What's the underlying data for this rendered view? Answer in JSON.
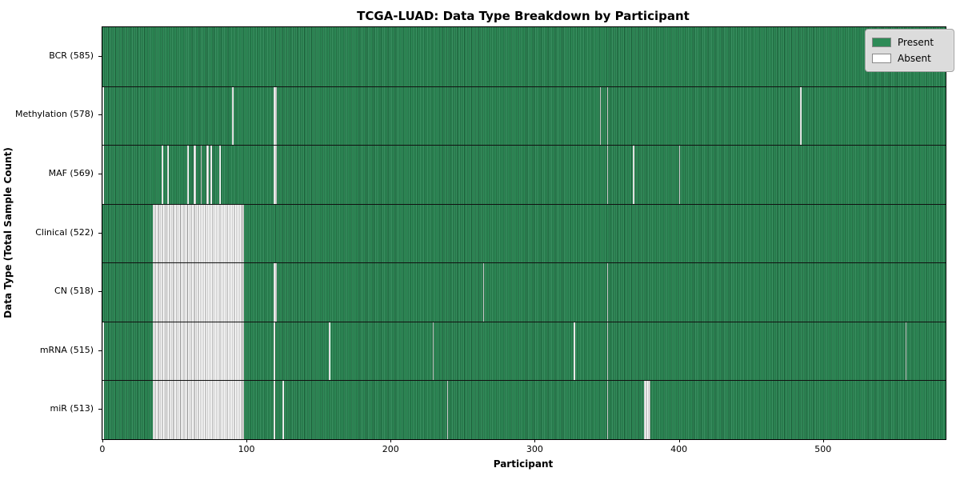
{
  "chart_data": {
    "type": "heatmap",
    "title": "TCGA-LUAD: Data Type Breakdown by Participant",
    "xlabel": "Participant",
    "ylabel": "Data Type (Total Sample Count)",
    "x_ticks": [
      0,
      100,
      200,
      300,
      400,
      500
    ],
    "n_participants": 585,
    "xlim": [
      -0.5,
      584.5
    ],
    "grid": "row-separators",
    "legend_position": "upper right",
    "colors": {
      "present": "#2e8b57",
      "present_edge": "#1c5c38",
      "present_light": "#459a6c",
      "absent": "#ffffff",
      "absent_edge": "#909090",
      "separator": "#111111"
    },
    "legend": [
      {
        "label": "Present",
        "color": "#2e8b57"
      },
      {
        "label": "Absent",
        "color": "#ffffff"
      }
    ],
    "rows": [
      {
        "label": "BCR (585)",
        "present_count": 585,
        "absent": []
      },
      {
        "label": "Methylation (578)",
        "present_count": 578,
        "absent": [
          0,
          90,
          [
            119,
            120
          ],
          345,
          350,
          484
        ]
      },
      {
        "label": "MAF (569)",
        "present_count": 569,
        "absent": [
          0,
          41,
          45,
          59,
          [
            63,
            64
          ],
          68,
          [
            72,
            73
          ],
          75,
          81,
          [
            119,
            120
          ],
          350,
          368,
          400
        ]
      },
      {
        "label": "Clinical (522)",
        "present_count": 522,
        "absent": [
          [
            35,
            97
          ]
        ]
      },
      {
        "label": "CN (518)",
        "present_count": 518,
        "absent": [
          [
            35,
            97
          ],
          [
            119,
            120
          ],
          264,
          350
        ]
      },
      {
        "label": "mRNA (515)",
        "present_count": 515,
        "absent": [
          0,
          [
            35,
            97
          ],
          119,
          157,
          229,
          327,
          350,
          557
        ]
      },
      {
        "label": "miR (513)",
        "present_count": 513,
        "absent": [
          0,
          [
            35,
            97
          ],
          119,
          125,
          239,
          350,
          [
            376,
            379
          ]
        ]
      }
    ]
  }
}
